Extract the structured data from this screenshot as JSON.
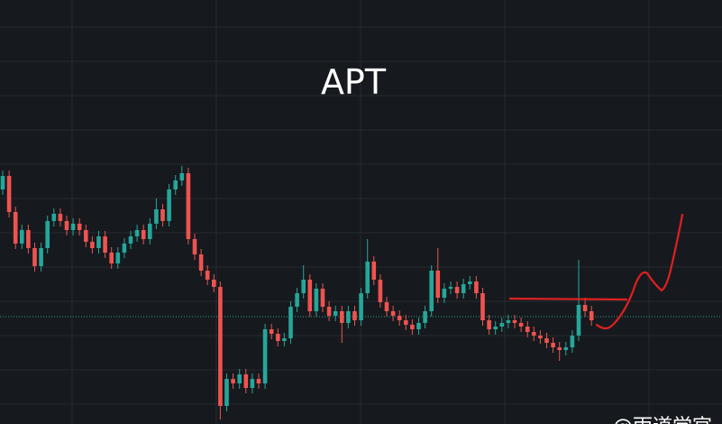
{
  "chart_data": {
    "type": "candlestick",
    "title": "APT",
    "watermark": "@雨道学官",
    "up_color": "#26a69a",
    "down_color": "#ef5350",
    "ylim": [
      0,
      470
    ],
    "open": [
      260,
      275,
      235,
      200,
      215,
      195,
      175,
      195,
      225,
      233,
      225,
      215,
      222,
      215,
      202,
      195,
      208,
      190,
      178,
      190,
      200,
      208,
      215,
      205,
      222,
      238,
      225,
      260,
      270,
      278,
      205,
      188,
      170,
      160,
      152,
      20,
      50,
      45,
      55,
      40,
      50,
      45,
      105,
      100,
      92,
      95,
      130,
      145,
      160,
      125,
      150,
      130,
      120,
      125,
      112,
      125,
      115,
      145,
      180,
      160,
      135,
      125,
      120,
      115,
      110,
      105,
      112,
      125,
      170,
      140,
      150,
      152,
      145,
      155,
      158,
      145,
      115,
      105,
      108,
      112,
      115,
      112,
      108,
      102,
      98,
      95,
      90,
      85,
      82,
      85,
      98,
      132,
      125
    ],
    "high": [
      281,
      281,
      241,
      221,
      221,
      201,
      201,
      231,
      239,
      239,
      231,
      228,
      228,
      221,
      208,
      214,
      214,
      196,
      196,
      206,
      214,
      221,
      221,
      228,
      250,
      244,
      266,
      276,
      286,
      284,
      211,
      194,
      176,
      166,
      158,
      56,
      56,
      61,
      61,
      56,
      56,
      111,
      111,
      106,
      101,
      136,
      151,
      176,
      166,
      156,
      156,
      136,
      131,
      131,
      131,
      131,
      151,
      205,
      186,
      166,
      141,
      131,
      126,
      121,
      116,
      118,
      131,
      176,
      195,
      156,
      158,
      158,
      161,
      164,
      164,
      151,
      121,
      114,
      118,
      121,
      121,
      118,
      114,
      108,
      104,
      101,
      96,
      91,
      91,
      104,
      182,
      140,
      131
    ],
    "low": [
      254,
      229,
      194,
      194,
      189,
      169,
      169,
      189,
      219,
      219,
      209,
      209,
      209,
      196,
      189,
      189,
      184,
      172,
      172,
      184,
      194,
      202,
      199,
      199,
      216,
      219,
      219,
      254,
      264,
      199,
      182,
      164,
      154,
      146,
      5,
      14,
      39,
      39,
      34,
      34,
      39,
      39,
      94,
      86,
      86,
      89,
      124,
      139,
      119,
      119,
      124,
      114,
      114,
      90,
      106,
      109,
      109,
      139,
      154,
      129,
      119,
      114,
      109,
      104,
      99,
      99,
      106,
      119,
      134,
      134,
      144,
      139,
      139,
      149,
      139,
      109,
      99,
      99,
      102,
      106,
      106,
      102,
      96,
      92,
      89,
      84,
      79,
      70,
      76,
      79,
      92,
      119,
      109
    ],
    "close": [
      275,
      235,
      200,
      215,
      195,
      175,
      195,
      225,
      233,
      225,
      215,
      222,
      215,
      202,
      195,
      208,
      190,
      178,
      190,
      200,
      208,
      215,
      205,
      222,
      238,
      225,
      260,
      270,
      278,
      205,
      188,
      170,
      160,
      152,
      20,
      50,
      45,
      55,
      40,
      50,
      45,
      105,
      100,
      92,
      95,
      130,
      145,
      160,
      125,
      150,
      130,
      120,
      125,
      112,
      125,
      115,
      145,
      180,
      160,
      135,
      125,
      120,
      115,
      110,
      105,
      112,
      125,
      170,
      140,
      150,
      152,
      145,
      155,
      158,
      145,
      115,
      105,
      108,
      112,
      115,
      112,
      108,
      102,
      98,
      95,
      90,
      85,
      82,
      85,
      98,
      132,
      125,
      115
    ]
  }
}
